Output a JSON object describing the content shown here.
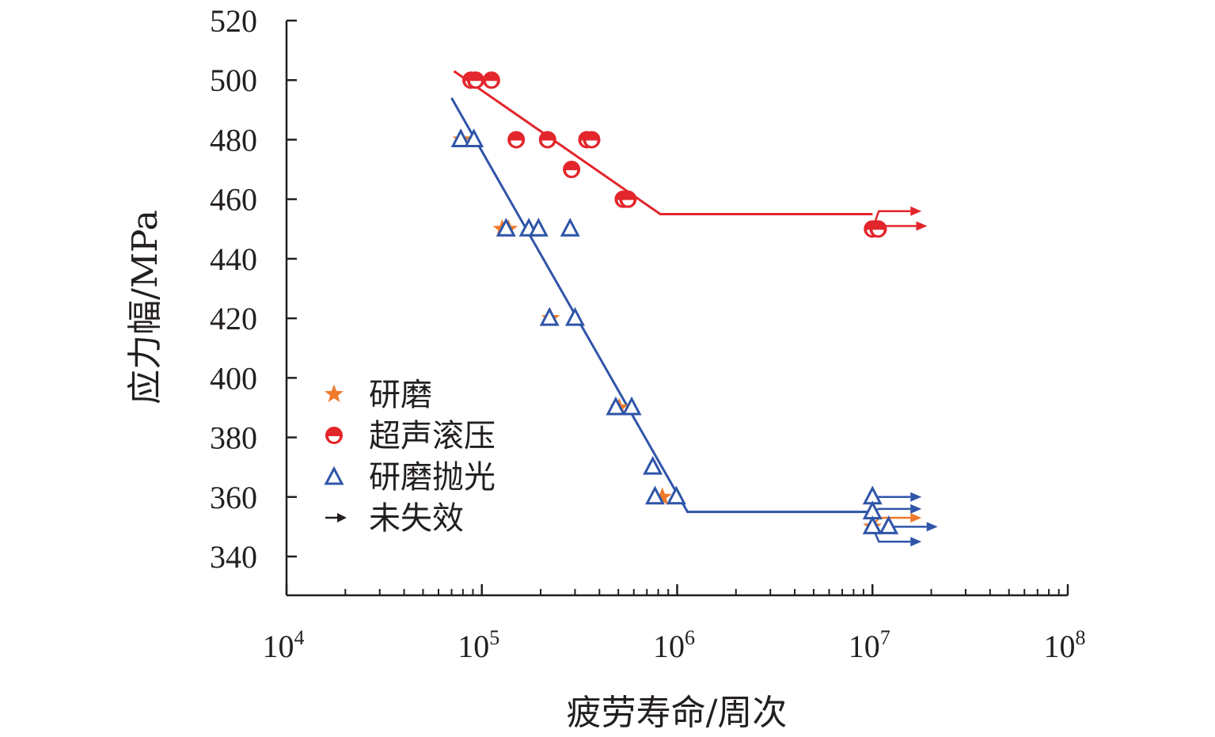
{
  "chart_data": {
    "type": "scatter",
    "xlabel": "疲劳寿命/周次",
    "ylabel": "应力幅/MPa",
    "x_scale": "log",
    "xlim": [
      10000,
      100000000
    ],
    "ylim": [
      328,
      520
    ],
    "x_ticks": [
      {
        "value": 10000,
        "base": "10",
        "exp": "4"
      },
      {
        "value": 100000,
        "base": "10",
        "exp": "5"
      },
      {
        "value": 1000000,
        "base": "10",
        "exp": "6"
      },
      {
        "value": 10000000,
        "base": "10",
        "exp": "7"
      },
      {
        "value": 100000000,
        "base": "10",
        "exp": "8"
      }
    ],
    "y_ticks": [
      {
        "value": 340,
        "label": "340"
      },
      {
        "value": 360,
        "label": "360"
      },
      {
        "value": 380,
        "label": "380"
      },
      {
        "value": 400,
        "label": "400"
      },
      {
        "value": 420,
        "label": "420"
      },
      {
        "value": 440,
        "label": "440"
      },
      {
        "value": 460,
        "label": "460"
      },
      {
        "value": 480,
        "label": "480"
      },
      {
        "value": 500,
        "label": "500"
      },
      {
        "value": 520,
        "label": "520"
      }
    ],
    "grid": false,
    "legend_position": "left-middle",
    "series": [
      {
        "name": "研磨",
        "marker": "star",
        "color": "#f07a2a",
        "points": [
          {
            "x": 79000,
            "y": 480
          },
          {
            "x": 127000,
            "y": 450
          },
          {
            "x": 137000,
            "y": 450
          },
          {
            "x": 225000,
            "y": 420
          },
          {
            "x": 505000,
            "y": 390
          },
          {
            "x": 840000,
            "y": 360
          },
          {
            "x": 10000000,
            "y": 350
          }
        ],
        "runouts": [
          {
            "x": 10000000,
            "y": 350,
            "arrow_y": 353
          }
        ]
      },
      {
        "name": "超声滚压",
        "marker": "half-circle",
        "color": "#e3262c",
        "points": [
          {
            "x": 88000,
            "y": 500
          },
          {
            "x": 93000,
            "y": 500
          },
          {
            "x": 112000,
            "y": 500
          },
          {
            "x": 150000,
            "y": 480
          },
          {
            "x": 217000,
            "y": 480
          },
          {
            "x": 345000,
            "y": 480
          },
          {
            "x": 365000,
            "y": 480
          },
          {
            "x": 288000,
            "y": 470
          },
          {
            "x": 530000,
            "y": 460
          },
          {
            "x": 560000,
            "y": 460
          },
          {
            "x": 10000000,
            "y": 450
          },
          {
            "x": 10700000,
            "y": 450
          }
        ],
        "runouts": [
          {
            "x": 10000000,
            "y": 450,
            "arrow_y": 456
          },
          {
            "x": 10700000,
            "y": 450,
            "arrow_y": 451
          }
        ],
        "fit_line": [
          {
            "x": 72000,
            "y": 503
          },
          {
            "x": 820000,
            "y": 455
          },
          {
            "x": 10000000,
            "y": 455
          }
        ]
      },
      {
        "name": "研磨抛光",
        "marker": "triangle",
        "color": "#2f55a8",
        "points": [
          {
            "x": 78000,
            "y": 480
          },
          {
            "x": 91000,
            "y": 480
          },
          {
            "x": 133000,
            "y": 450
          },
          {
            "x": 174000,
            "y": 450
          },
          {
            "x": 195000,
            "y": 450
          },
          {
            "x": 283000,
            "y": 450
          },
          {
            "x": 222000,
            "y": 420
          },
          {
            "x": 300000,
            "y": 420
          },
          {
            "x": 485000,
            "y": 390
          },
          {
            "x": 585000,
            "y": 390
          },
          {
            "x": 750000,
            "y": 370
          },
          {
            "x": 770000,
            "y": 360
          },
          {
            "x": 990000,
            "y": 360
          },
          {
            "x": 10000000,
            "y": 360
          },
          {
            "x": 10000000,
            "y": 355
          },
          {
            "x": 10000000,
            "y": 350
          },
          {
            "x": 12100000,
            "y": 350
          }
        ],
        "runouts": [
          {
            "x": 10000000,
            "y": 360,
            "arrow_y": 360
          },
          {
            "x": 10000000,
            "y": 355,
            "arrow_y": 356
          },
          {
            "x": 12100000,
            "y": 350,
            "arrow_y": 350
          },
          {
            "x": 10000000,
            "y": 350,
            "arrow_y": 345
          }
        ],
        "fit_line": [
          {
            "x": 70000,
            "y": 494
          },
          {
            "x": 1130000,
            "y": 355
          },
          {
            "x": 10000000,
            "y": 355
          }
        ]
      },
      {
        "name": "未失效",
        "marker": "arrow",
        "color": "#231f20"
      }
    ]
  }
}
